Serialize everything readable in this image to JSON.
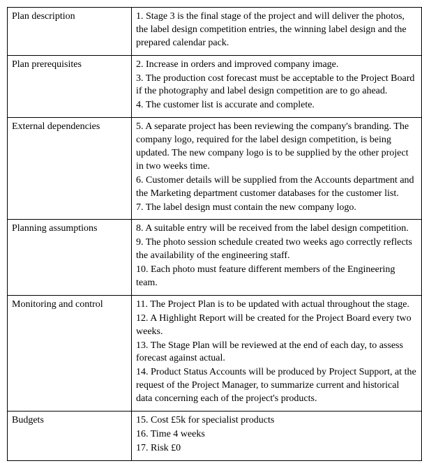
{
  "table": {
    "rows": [
      {
        "label": "Plan description",
        "items": [
          "1. Stage 3 is the final stage of the project and will deliver the photos, the label design competition entries, the winning label design and the prepared calendar pack."
        ]
      },
      {
        "label": "Plan prerequisites",
        "items": [
          "2. Increase in orders and improved company image.",
          "3. The production cost forecast must be acceptable to the Project Board if the photography and label design competition are to go ahead.",
          "4. The customer list is accurate and complete."
        ]
      },
      {
        "label": "External dependencies",
        "items": [
          "5. A separate project has been reviewing the company's branding. The company logo, required for the label design competition, is being updated. The new company logo is to be supplied by the other project in two weeks time.",
          "6. Customer details will be supplied from the Accounts department and the Marketing department customer databases for the customer list.",
          "7. The label design must contain the new company logo."
        ]
      },
      {
        "label": "Planning assumptions",
        "items": [
          "8. A suitable entry will be received from the label design competition.",
          "9. The photo session schedule created two weeks ago correctly reflects the availability of the engineering staff.",
          "10. Each photo must feature different members of the Engineering team."
        ]
      },
      {
        "label": "Monitoring and control",
        "items": [
          "11. The Project Plan is to be updated with actual throughout the stage.",
          "12. A Highlight Report will be created for the Project Board every two weeks.",
          "13. The Stage Plan will be reviewed at the end of each day, to assess forecast against actual.",
          "14. Product Status Accounts will be produced by Project Support, at the request of the Project Manager, to summarize current and historical data concerning each of the project's products."
        ]
      },
      {
        "label": "Budgets",
        "items": [
          "15. Cost £5k for specialist products",
          "16. Time 4 weeks",
          "17. Risk £0"
        ]
      }
    ]
  }
}
